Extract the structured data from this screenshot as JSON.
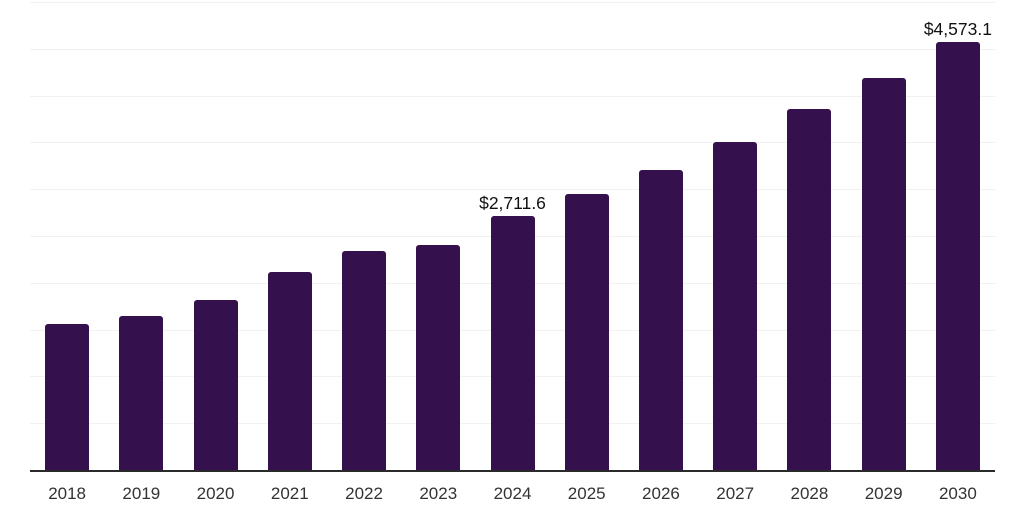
{
  "chart_data": {
    "type": "bar",
    "title": "",
    "xlabel": "",
    "ylabel": "",
    "categories": [
      "2018",
      "2019",
      "2020",
      "2021",
      "2022",
      "2023",
      "2024",
      "2025",
      "2026",
      "2027",
      "2028",
      "2029",
      "2030"
    ],
    "values": [
      1560,
      1645,
      1820,
      2120,
      2335,
      2400,
      2711.6,
      2950,
      3205,
      3500,
      3855,
      4185,
      4573.1
    ],
    "data_labels": [
      {
        "category": "2024",
        "text": "$2,711.6"
      },
      {
        "category": "2030",
        "text": "$4,573.1"
      }
    ],
    "ylim": [
      0,
      5000
    ],
    "gridline_step": 500,
    "grid": "horizontal",
    "legend": "none",
    "y_axis_tick_labels_visible": false
  },
  "colors": {
    "bar": "#34114d",
    "axis_line": "#2a2a2a",
    "gridline": "#f1f1f4",
    "data_label_text": "#111111",
    "x_tick_text": "#333333",
    "background": "#ffffff"
  }
}
